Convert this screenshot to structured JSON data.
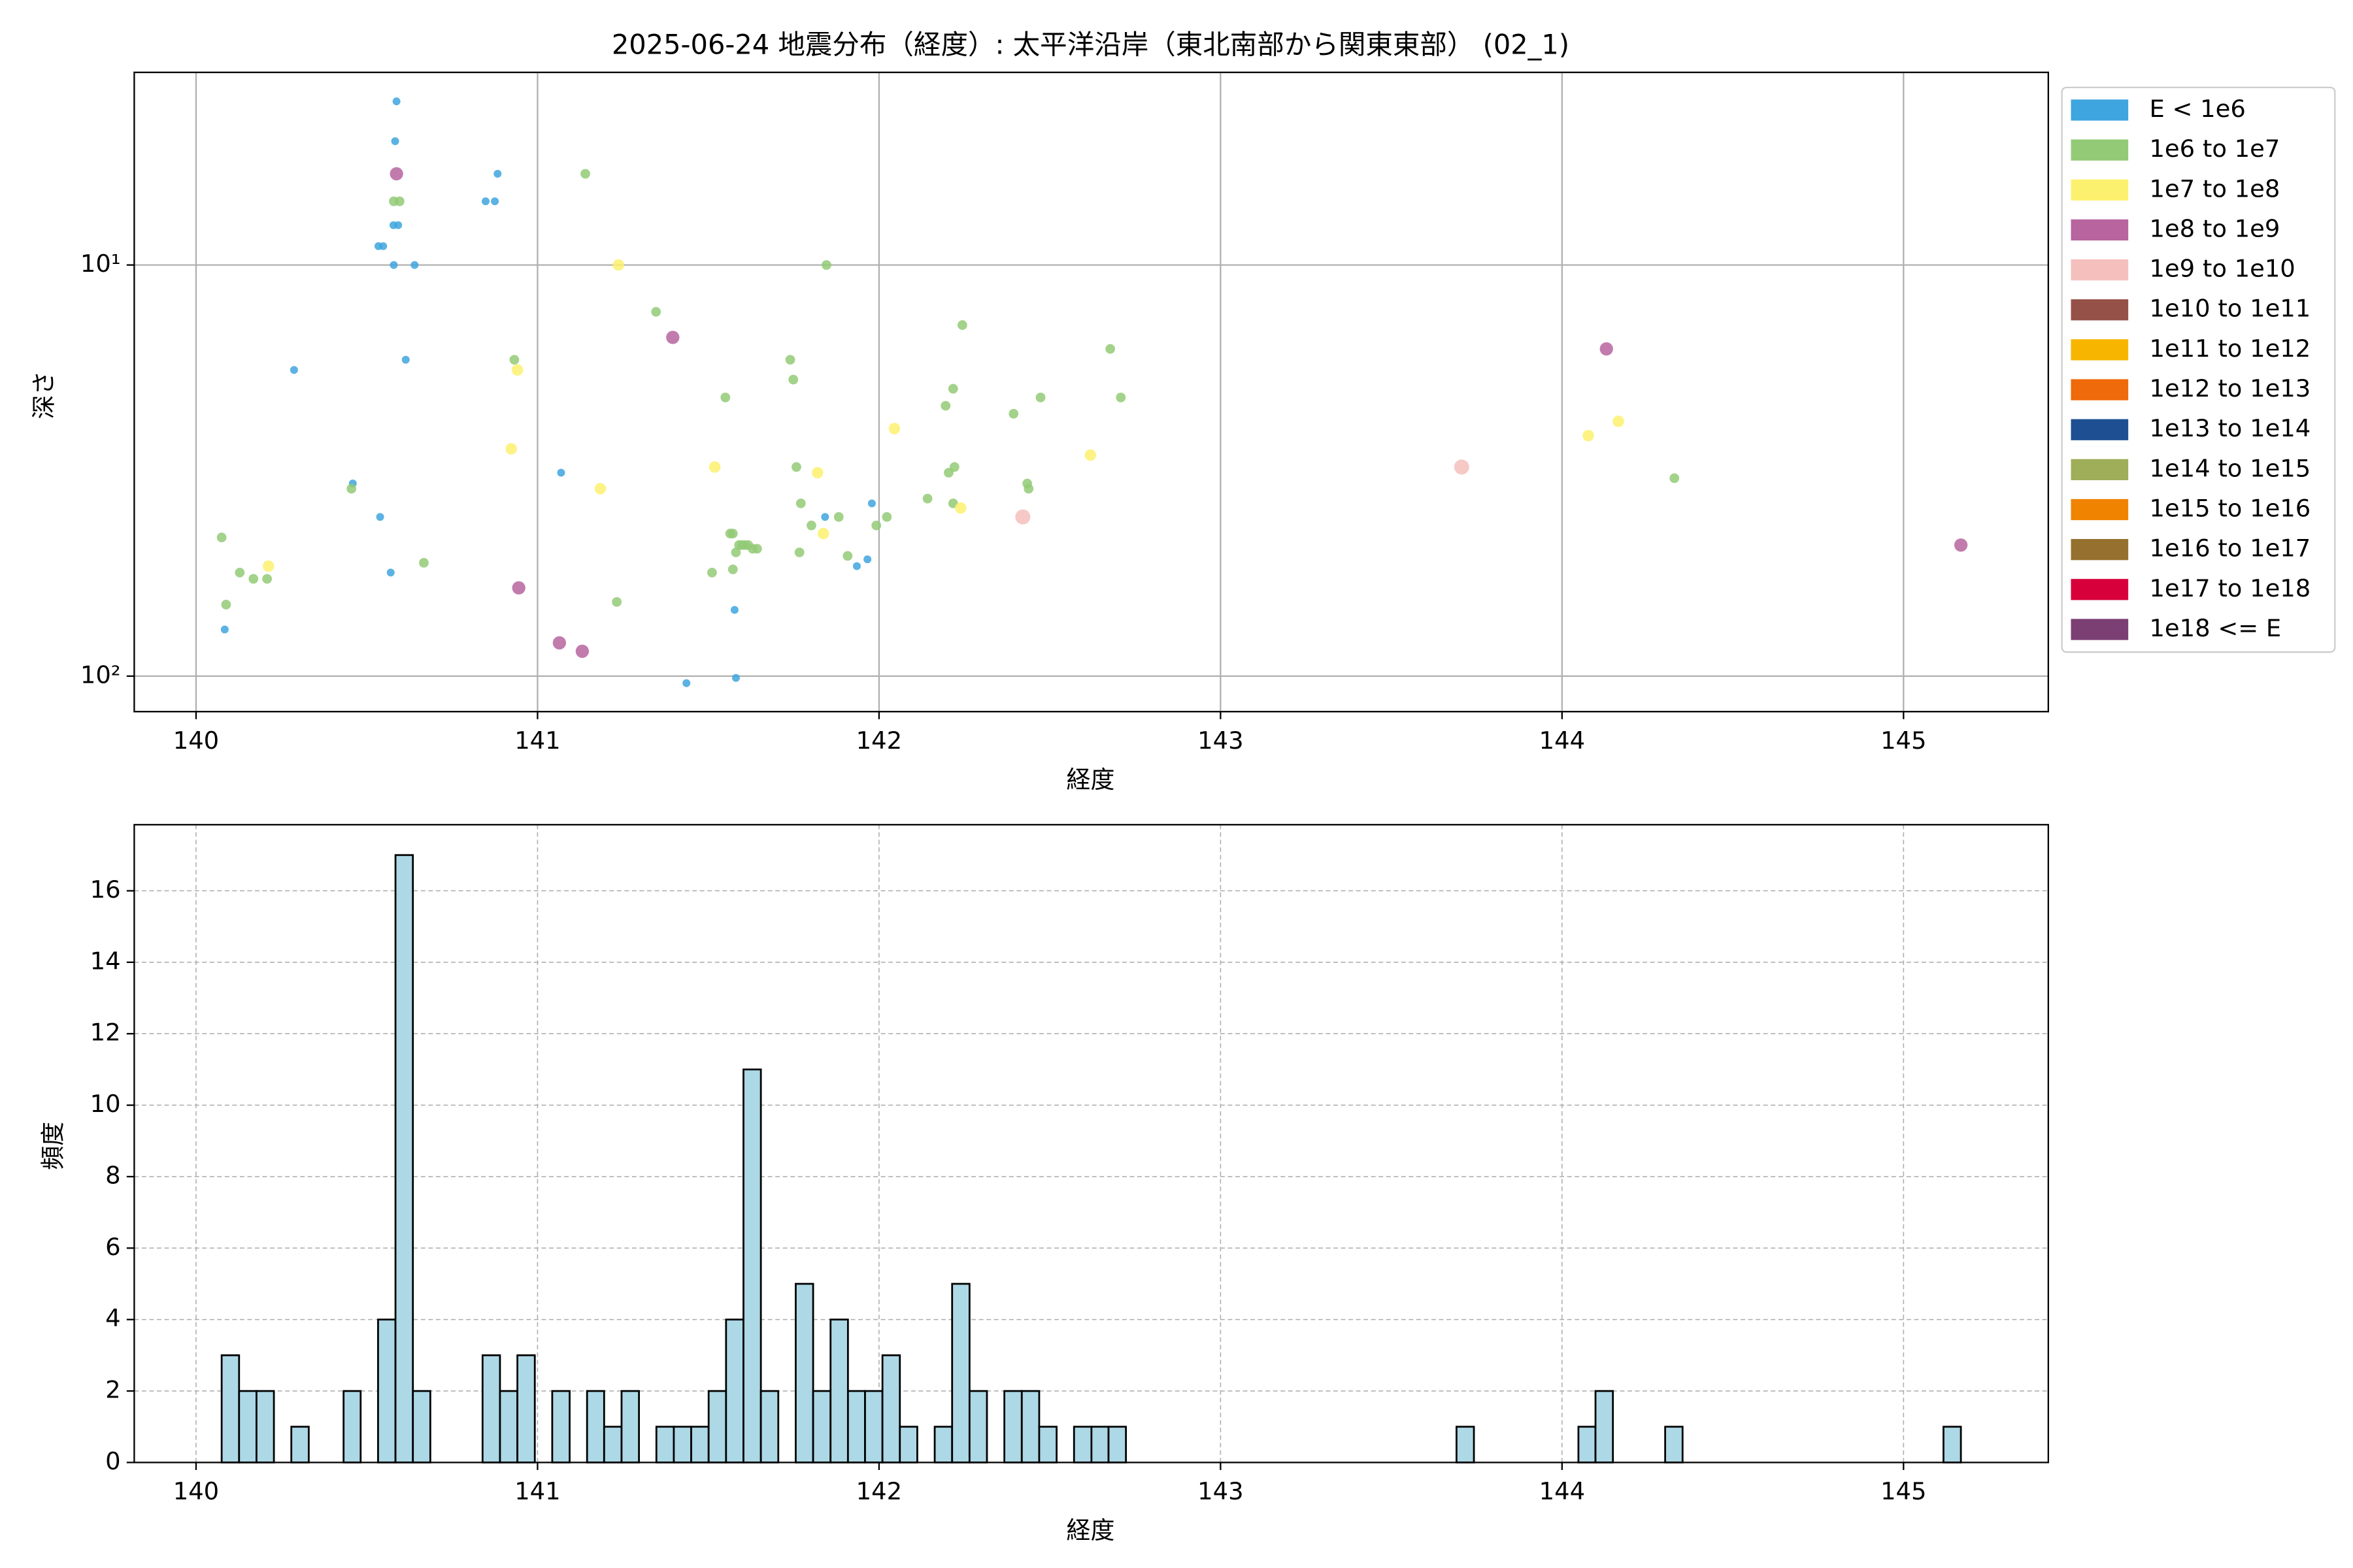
{
  "chart_data": [
    {
      "type": "scatter",
      "title": "2025-06-24 地震分布（経度）: 太平洋沿岸（東北南部から関東東部） (02_1)",
      "xlabel": "経度",
      "ylabel": "深さ",
      "xlim": [
        139.819,
        145.424
      ],
      "xticks": [
        140,
        141,
        142,
        143,
        144,
        145
      ],
      "yscale": "log",
      "ylim": [
        122,
        3.4
      ],
      "yticks": [
        {
          "value": 10,
          "label": "10¹"
        },
        {
          "value": 100,
          "label": "10²"
        }
      ],
      "grid": true,
      "legend": "outside right",
      "series": [
        {
          "name": "E < 1e6",
          "color": "#3ea5de",
          "x": [
            140.587,
            140.583,
            140.883,
            140.578,
            140.592,
            140.534,
            140.548,
            140.579,
            140.64,
            140.848,
            140.875,
            140.287,
            140.614,
            140.459,
            140.539,
            140.57,
            141.069,
            140.084,
            141.436,
            141.581,
            141.577,
            141.842,
            141.979,
            141.966,
            141.935
          ],
          "values": [
            4.0,
            5.0,
            6.0,
            8.0,
            8.0,
            9.0,
            9.0,
            10,
            10,
            7.0,
            7.0,
            18,
            17,
            34,
            41,
            56,
            32,
            77,
            104,
            101,
            69,
            41,
            38,
            52,
            54
          ]
        },
        {
          "name": "1e6 to 1e7",
          "color": "#93ca76",
          "x": [
            140.579,
            140.596,
            141.14,
            141.846,
            141.347,
            142.244,
            142.677,
            140.932,
            141.74,
            141.749,
            142.217,
            141.55,
            142.708,
            142.473,
            142.195,
            142.394,
            144.329,
            142.221,
            142.204,
            141.758,
            142.434,
            142.438,
            140.455,
            142.142,
            142.217,
            141.771,
            142.023,
            141.882,
            141.992,
            141.802,
            140.075,
            141.564,
            141.572,
            141.59,
            141.599,
            141.608,
            141.617,
            141.581,
            141.63,
            141.643,
            141.767,
            141.908,
            140.128,
            141.511,
            141.572,
            140.168,
            140.208,
            140.667,
            140.088,
            141.232
          ],
          "values": [
            7,
            7,
            6,
            10,
            13,
            14,
            16,
            17,
            17,
            19,
            20,
            21,
            21,
            21,
            22,
            23,
            33,
            31,
            32,
            31,
            34,
            35,
            35,
            37,
            38,
            38,
            41,
            41,
            43,
            43,
            46,
            45,
            45,
            48,
            48,
            48,
            48,
            50,
            49,
            49,
            50,
            51,
            56,
            56,
            55,
            58,
            58,
            53,
            67,
            66
          ]
        },
        {
          "name": "1e7 to 1e8",
          "color": "#fcf16e",
          "x": [
            141.237,
            140.941,
            142.045,
            144.165,
            144.077,
            140.923,
            142.619,
            141.519,
            141.82,
            141.184,
            142.239,
            141.837,
            140.212
          ],
          "values": [
            10,
            18,
            25,
            24,
            26,
            28,
            29,
            31,
            32,
            35,
            39,
            45,
            54
          ]
        },
        {
          "name": "1e8 to 1e9",
          "color": "#b7649f",
          "x": [
            140.587,
            141.396,
            144.13,
            140.945,
            141.064,
            141.131,
            145.168
          ],
          "values": [
            6,
            15,
            16,
            61,
            83,
            87,
            48
          ]
        },
        {
          "name": "1e9 to 1e10",
          "color": "#f5bfbd",
          "x": [
            143.706,
            142.421
          ],
          "values": [
            31,
            41
          ]
        },
        {
          "name": "1e10 to 1e11",
          "color": "#955148",
          "x": [],
          "values": []
        },
        {
          "name": "1e11 to 1e12",
          "color": "#f7b500",
          "x": [],
          "values": []
        },
        {
          "name": "1e12 to 1e13",
          "color": "#ee6a0a",
          "x": [],
          "values": []
        },
        {
          "name": "1e13 to 1e14",
          "color": "#1e4f93",
          "x": [],
          "values": []
        },
        {
          "name": "1e14 to 1e15",
          "color": "#9fae58",
          "x": [],
          "values": []
        },
        {
          "name": "1e15 to 1e16",
          "color": "#f08300",
          "x": [],
          "values": []
        },
        {
          "name": "1e16 to 1e17",
          "color": "#96702f",
          "x": [],
          "values": []
        },
        {
          "name": "1e17 to 1e18",
          "color": "#d7003a",
          "x": [],
          "values": []
        },
        {
          "name": "1e18 <= E",
          "color": "#7b3f74",
          "x": [],
          "values": []
        }
      ]
    },
    {
      "type": "histogram",
      "xlabel": "経度",
      "ylabel": "頻度",
      "xlim": [
        139.819,
        145.424
      ],
      "xticks": [
        140,
        141,
        142,
        143,
        144,
        145
      ],
      "ylim": [
        0,
        17.85
      ],
      "yticks": [
        0,
        2,
        4,
        6,
        8,
        10,
        12,
        14,
        16
      ],
      "grid": "dashed",
      "color": "#add8e6",
      "edgecolor": "#000000",
      "bins": [
        140.075,
        140.126,
        140.177,
        140.228,
        140.279,
        140.33,
        140.381,
        140.432,
        140.482,
        140.533,
        140.584,
        140.635,
        140.686,
        140.737,
        140.788,
        140.839,
        140.89,
        140.941,
        140.992,
        141.043,
        141.094,
        141.145,
        141.195,
        141.246,
        141.297,
        141.348,
        141.399,
        141.45,
        141.501,
        141.552,
        141.603,
        141.654,
        141.705,
        141.756,
        141.807,
        141.858,
        141.909,
        141.959,
        142.01,
        142.061,
        142.112,
        142.163,
        142.214,
        142.265,
        142.316,
        142.367,
        142.418,
        142.469,
        142.52,
        142.571,
        142.622,
        142.672,
        142.723,
        142.774,
        142.825,
        142.876,
        142.927,
        142.978,
        143.029,
        143.08,
        143.131,
        143.182,
        143.233,
        143.284,
        143.335,
        143.385,
        143.436,
        143.487,
        143.538,
        143.589,
        143.64,
        143.691,
        143.742,
        143.793,
        143.844,
        143.895,
        143.946,
        143.997,
        144.048,
        144.098,
        144.149,
        144.2,
        144.251,
        144.302,
        144.353,
        144.404,
        144.455,
        144.506,
        144.557,
        144.608,
        144.659,
        144.71,
        144.761,
        144.811,
        144.862,
        144.913,
        144.964,
        145.015,
        145.066,
        145.117,
        145.168
      ],
      "values": [
        3,
        2,
        2,
        0,
        1,
        0,
        0,
        2,
        0,
        4,
        17,
        2,
        0,
        0,
        0,
        3,
        2,
        3,
        0,
        2,
        0,
        2,
        1,
        2,
        0,
        1,
        1,
        1,
        2,
        4,
        11,
        2,
        0,
        5,
        2,
        4,
        2,
        2,
        3,
        1,
        0,
        1,
        5,
        2,
        0,
        2,
        2,
        1,
        0,
        1,
        1,
        1,
        0,
        0,
        0,
        0,
        0,
        0,
        0,
        0,
        0,
        0,
        0,
        0,
        0,
        0,
        0,
        0,
        0,
        0,
        0,
        1,
        0,
        0,
        0,
        0,
        0,
        0,
        1,
        2,
        0,
        0,
        0,
        1,
        0,
        0,
        0,
        0,
        0,
        0,
        0,
        0,
        0,
        0,
        0,
        0,
        0,
        0,
        0,
        1
      ]
    }
  ]
}
